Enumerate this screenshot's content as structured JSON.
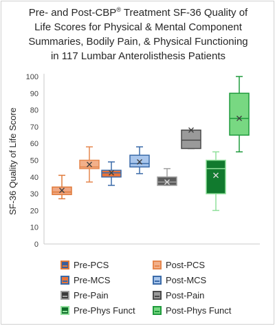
{
  "title": {
    "line1_pre": "Pre- and Post-CBP",
    "line1_sup": "®",
    "line1_post": " Treatment SF-36 Quality of",
    "line2": "Life Scores for Physical & Mental Component",
    "line3": "Summaries, Bodily Pain, & Physical Functioning",
    "line4": "in 117 Lumbar Anterolisthesis Patients"
  },
  "chart_data": {
    "type": "box",
    "ylabel": "SF-36 Quality of Life Score",
    "ylim": [
      0,
      100
    ],
    "yticks": [
      "0",
      "10",
      "20",
      "30",
      "40",
      "50",
      "60",
      "70",
      "80",
      "90",
      "100"
    ],
    "grid": false,
    "legend_position": "bottom",
    "series": [
      {
        "name": "Pre-PCS",
        "min": 27,
        "q1": 29.5,
        "median": 31,
        "q3": 34,
        "max": 41,
        "mean": 32,
        "fill": "#f0a884",
        "edge": "#e07a3a",
        "legend_fill": "#3a5d9c"
      },
      {
        "name": "Post-PCS",
        "min": 37,
        "q1": 45,
        "median": 46,
        "q3": 50,
        "max": 58,
        "mean": 47.5,
        "fill": "#f2b08a",
        "edge": "#e6874e",
        "legend_fill": "#f2b08a"
      },
      {
        "name": "Pre-MCS",
        "min": 35,
        "q1": 40,
        "median": 42.5,
        "q3": 44,
        "max": 49,
        "mean": 42.5,
        "fill": "#e8743b",
        "edge": "#3a6aa8",
        "legend_fill": "#e8743b"
      },
      {
        "name": "Post-MCS",
        "min": 42,
        "q1": 46,
        "median": 48,
        "q3": 53,
        "max": 58,
        "mean": 49,
        "fill": "#a9c6ec",
        "edge": "#3a6aa8",
        "legend_fill": "#a9c6ec"
      },
      {
        "name": "Pre-Pain",
        "min": 35,
        "q1": 35,
        "median": 37,
        "q3": 40,
        "max": 45,
        "mean": 37,
        "fill": "#5c5c5c",
        "edge": "#a0a0a0",
        "legend_fill": "#3b3b3b"
      },
      {
        "name": "Post-Pain",
        "min": 57,
        "q1": 57,
        "median": 62,
        "q3": 68,
        "max": 68,
        "mean": 68,
        "fill": "#9a9a9a",
        "edge": "#4a4a4a",
        "legend_fill": "#9a9a9a"
      },
      {
        "name": "Pre-Phys Funct",
        "min": 20,
        "q1": 30,
        "median": 45,
        "q3": 50,
        "max": 55,
        "mean": 41,
        "fill": "#117a2e",
        "edge": "#8fe09a",
        "legend_fill": "#0f6e2a"
      },
      {
        "name": "Post-Phys Funct",
        "min": 55,
        "q1": 65,
        "median": 75,
        "q3": 90,
        "max": 100,
        "mean": 75,
        "fill": "#78d882",
        "edge": "#1e9a3c",
        "legend_fill": "#78d882"
      }
    ]
  }
}
